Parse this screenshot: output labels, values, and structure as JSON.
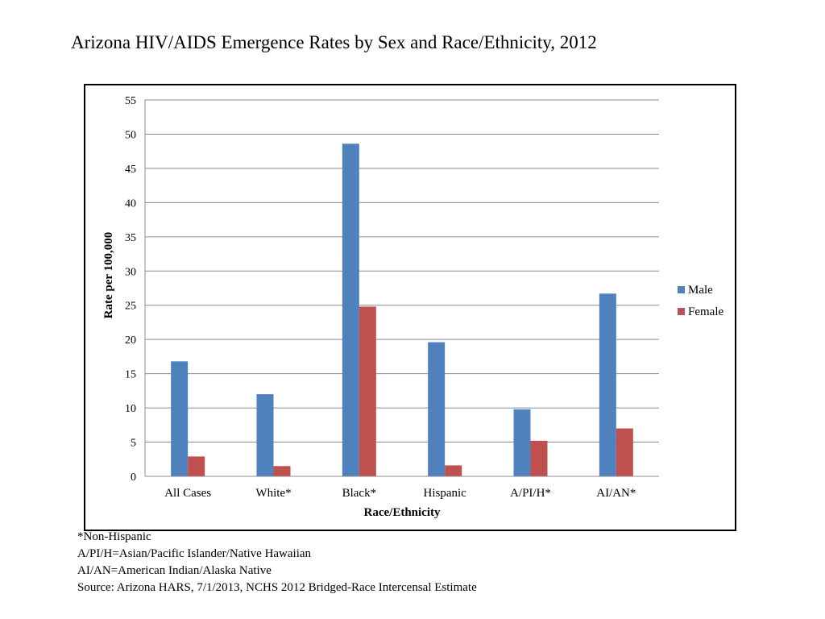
{
  "title": "Arizona HIV/AIDS Emergence Rates by Sex and Race/Ethnicity, 2012",
  "colors": {
    "male": "#4F81BD",
    "female": "#C0504D",
    "grid": "#8c8c8c",
    "axis": "#8c8c8c"
  },
  "chart_data": {
    "type": "bar",
    "title": "Arizona HIV/AIDS Emergence Rates by Sex and Race/Ethnicity, 2012",
    "xlabel": "Race/Ethnicity",
    "ylabel": "Rate per 100,000",
    "ylim": [
      0,
      55
    ],
    "yticks": [
      0,
      5,
      10,
      15,
      20,
      25,
      30,
      35,
      40,
      45,
      50,
      55
    ],
    "grid": true,
    "legend_position": "right",
    "categories": [
      "All Cases",
      "White*",
      "Black*",
      "Hispanic",
      "A/PI/H*",
      "AI/AN*"
    ],
    "series": [
      {
        "name": "Male",
        "values": [
          16.8,
          12.0,
          48.6,
          19.6,
          9.8,
          26.7
        ]
      },
      {
        "name": "Female",
        "values": [
          2.9,
          1.5,
          24.8,
          1.6,
          5.2,
          7.0
        ]
      }
    ]
  },
  "footnotes": [
    "*Non-Hispanic",
    "A/PI/H=Asian/Pacific Islander/Native Hawaiian",
    "AI/AN=American Indian/Alaska Native",
    "Source: Arizona HARS, 7/1/2013, NCHS 2012 Bridged-Race Intercensal Estimate"
  ]
}
